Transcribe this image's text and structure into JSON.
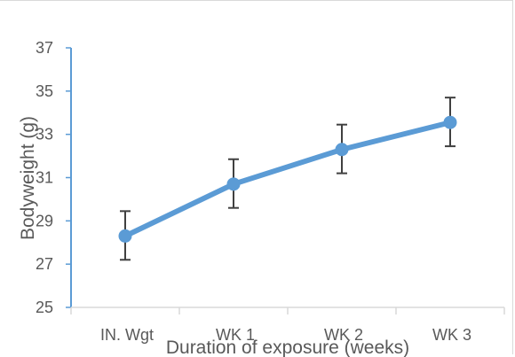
{
  "chart_data": {
    "type": "line",
    "title": "",
    "xlabel": "Duration of exposure (weeks)",
    "ylabel": "Bodyweight (g)",
    "categories": [
      "IN. Wgt",
      "WK 1",
      "WK 2",
      "WK 3"
    ],
    "series": [
      {
        "values": [
          28.3,
          30.7,
          32.3,
          33.55
        ],
        "error_low": [
          27.2,
          29.6,
          31.2,
          32.45
        ],
        "error_high": [
          29.45,
          31.85,
          33.45,
          34.7
        ],
        "color": "#5b9bd5"
      }
    ],
    "ylim": [
      25,
      37
    ],
    "yticks": [
      25,
      27,
      29,
      31,
      33,
      35,
      37
    ],
    "grid": false,
    "legend": "none",
    "axis_color": "#5b9bd5",
    "error_bar_color": "#404040",
    "text_color": "#595959"
  }
}
